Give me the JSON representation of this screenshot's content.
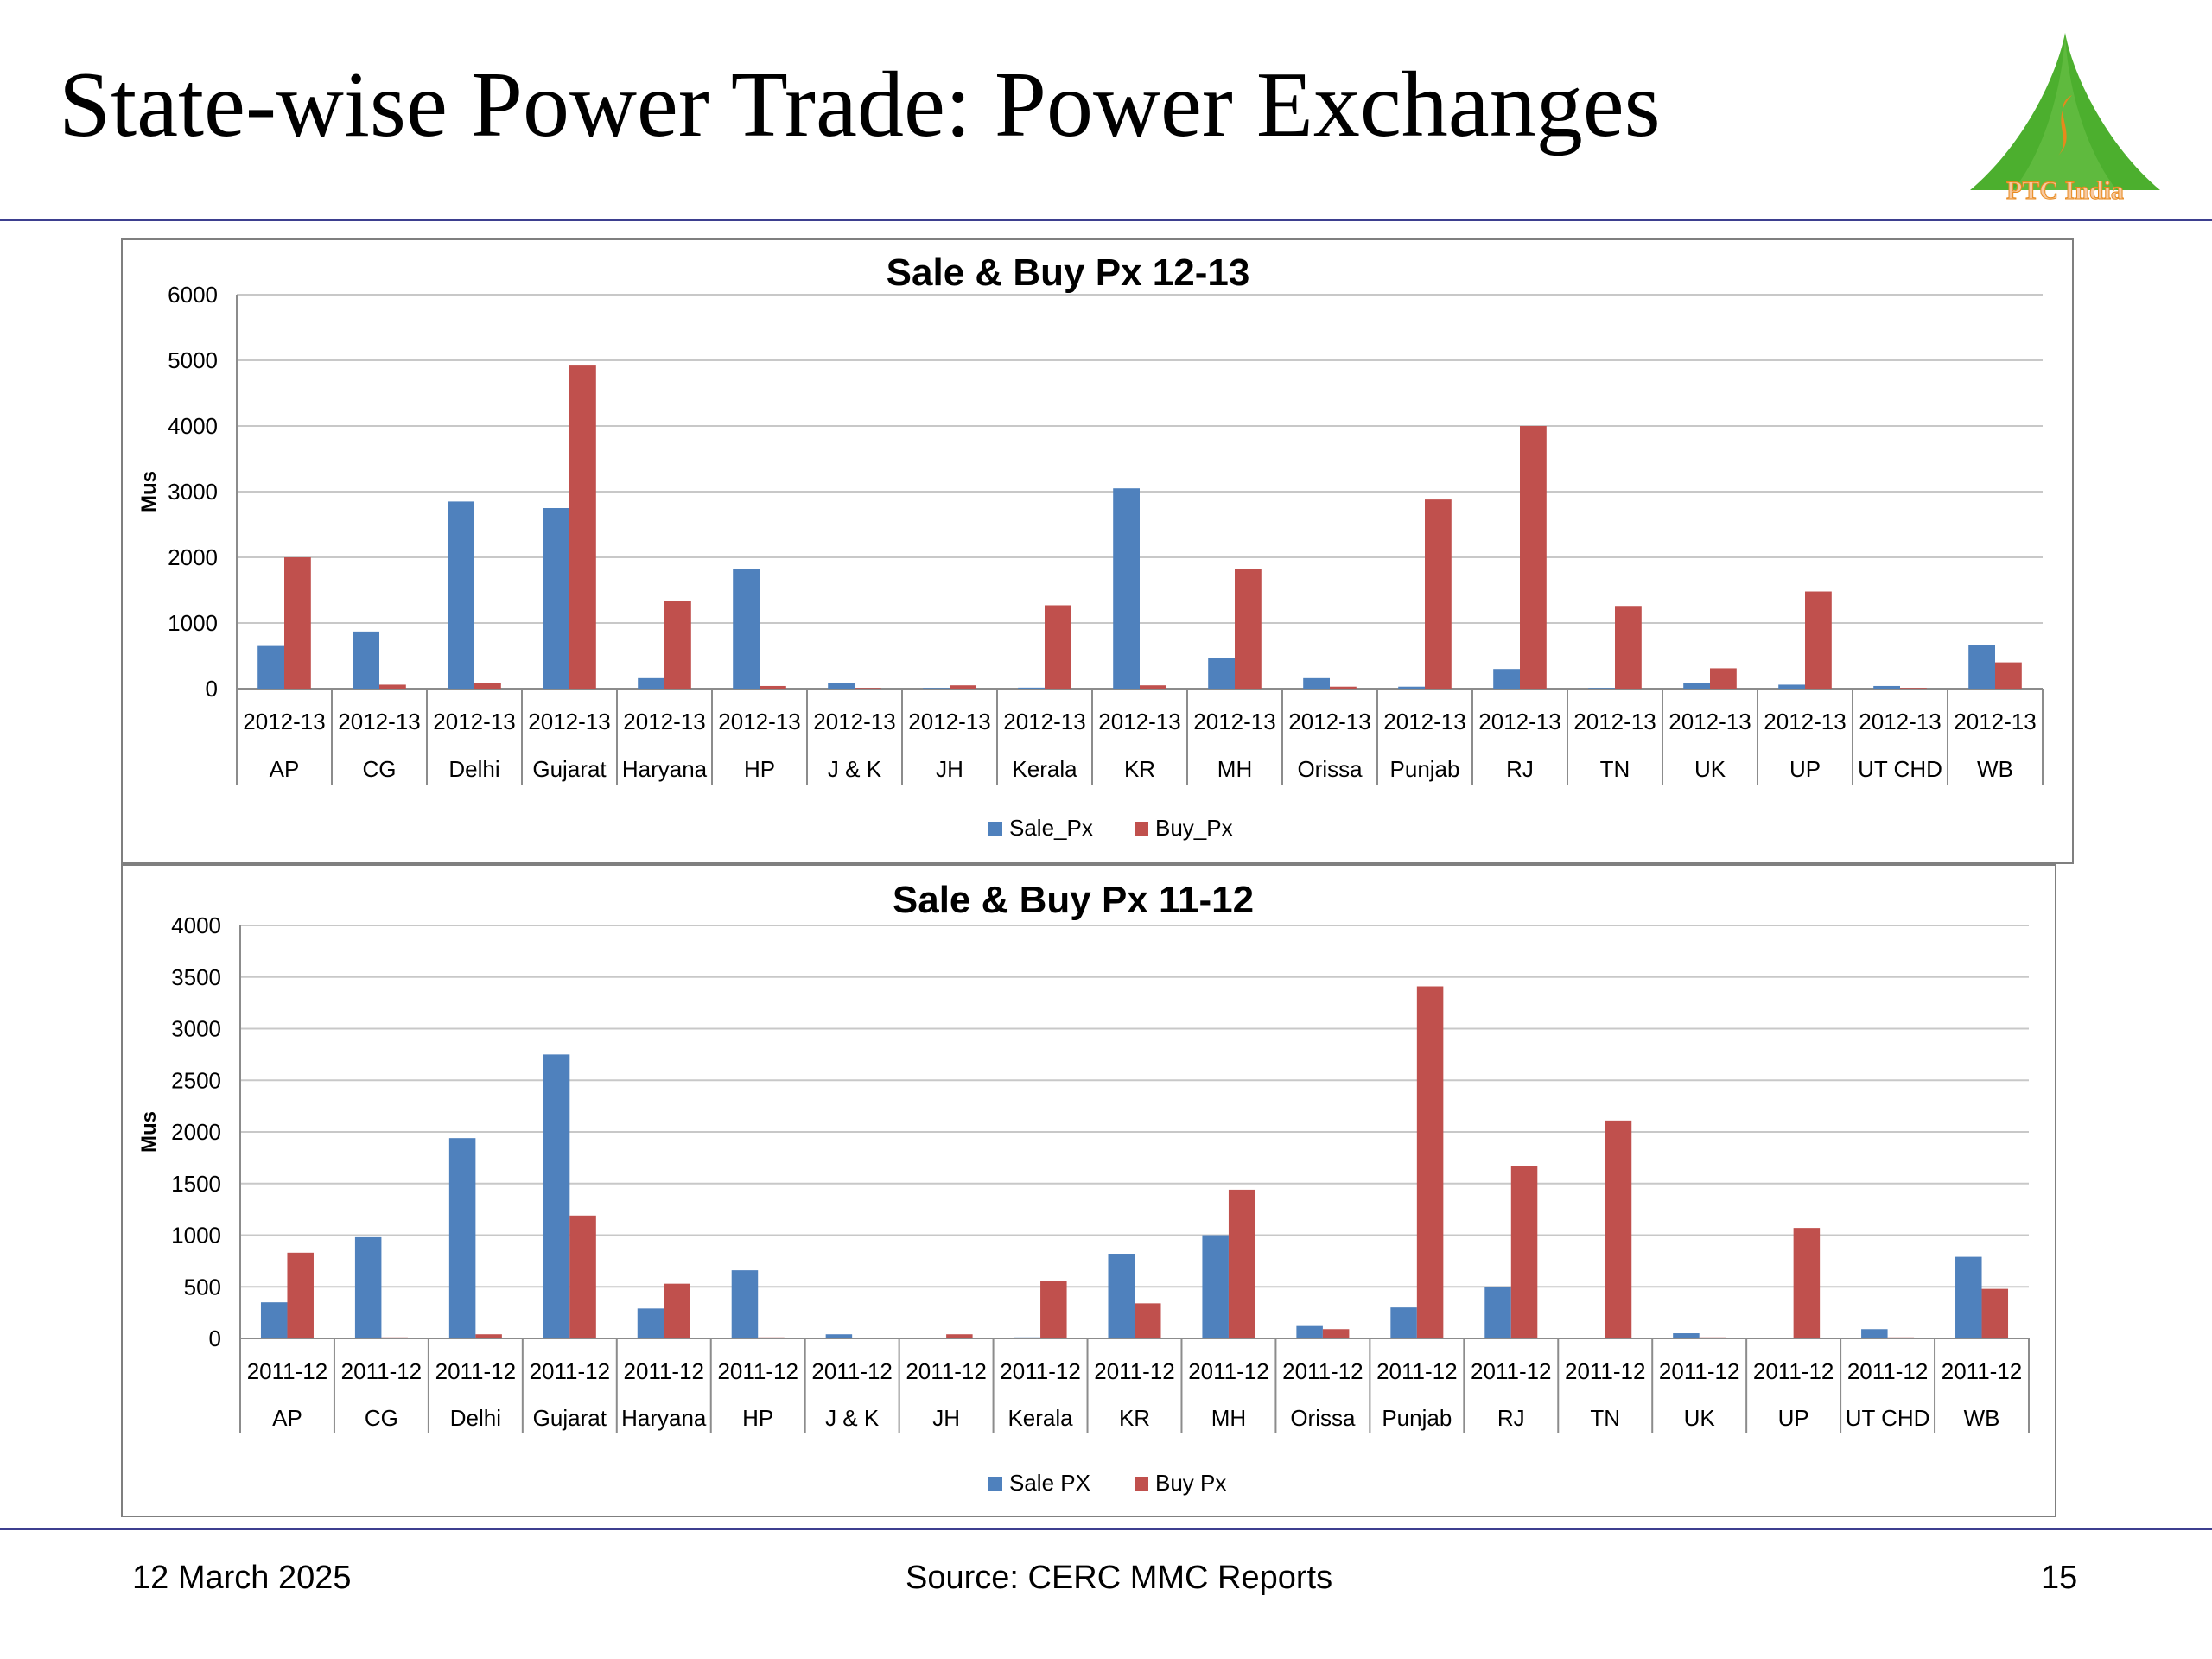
{
  "slide": {
    "title": "State-wise Power Trade: Power Exchanges",
    "logo_text": "PTC India",
    "footer_date": "12 March 2025",
    "footer_source": "Source: CERC MMC Reports",
    "page_number": "15"
  },
  "colors": {
    "sale": "#4f81bd",
    "buy": "#c0504d",
    "rule": "#3d3f8f",
    "logo_green": "#4caf2e",
    "logo_orange": "#e8891c"
  },
  "chart_data": [
    {
      "type": "bar",
      "title": "Sale & Buy Px 12-13",
      "ylabel": "Mus",
      "ylim": [
        0,
        6000
      ],
      "yticks": [
        0,
        1000,
        2000,
        3000,
        4000,
        5000,
        6000
      ],
      "year_label": "2012-13",
      "categories": [
        "AP",
        "CG",
        "Delhi",
        "Gujarat",
        "Haryana",
        "HP",
        "J & K",
        "JH",
        "Kerala",
        "KR",
        "MH",
        "Orissa",
        "Punjab",
        "RJ",
        "TN",
        "UK",
        "UP",
        "UT CHD",
        "WB"
      ],
      "series": [
        {
          "name": "Sale_Px",
          "values": [
            650,
            870,
            2850,
            2750,
            160,
            1820,
            80,
            10,
            15,
            3050,
            470,
            160,
            30,
            300,
            10,
            80,
            60,
            40,
            670
          ]
        },
        {
          "name": "Buy_Px",
          "values": [
            2000,
            60,
            90,
            4920,
            1330,
            40,
            10,
            50,
            1270,
            50,
            1820,
            30,
            2880,
            4000,
            1260,
            310,
            1480,
            10,
            400
          ]
        }
      ],
      "grid": true,
      "legend": "bottom"
    },
    {
      "type": "bar",
      "title": "Sale & Buy Px 11-12",
      "ylabel": "Mus",
      "ylim": [
        0,
        4000
      ],
      "yticks": [
        0,
        500,
        1000,
        1500,
        2000,
        2500,
        3000,
        3500,
        4000
      ],
      "year_label": "2011-12",
      "categories": [
        "AP",
        "CG",
        "Delhi",
        "Gujarat",
        "Haryana",
        "HP",
        "J & K",
        "JH",
        "Kerala",
        "KR",
        "MH",
        "Orissa",
        "Punjab",
        "RJ",
        "TN",
        "UK",
        "UP",
        "UT CHD",
        "WB"
      ],
      "series": [
        {
          "name": "Sale PX",
          "values": [
            350,
            980,
            1940,
            2750,
            290,
            660,
            40,
            0,
            10,
            820,
            1000,
            120,
            300,
            500,
            0,
            50,
            0,
            90,
            790
          ]
        },
        {
          "name": "Buy Px",
          "values": [
            830,
            10,
            40,
            1190,
            530,
            10,
            0,
            40,
            560,
            340,
            1440,
            90,
            3410,
            1670,
            2110,
            10,
            1070,
            10,
            480
          ]
        }
      ],
      "grid": true,
      "legend": "bottom"
    }
  ]
}
